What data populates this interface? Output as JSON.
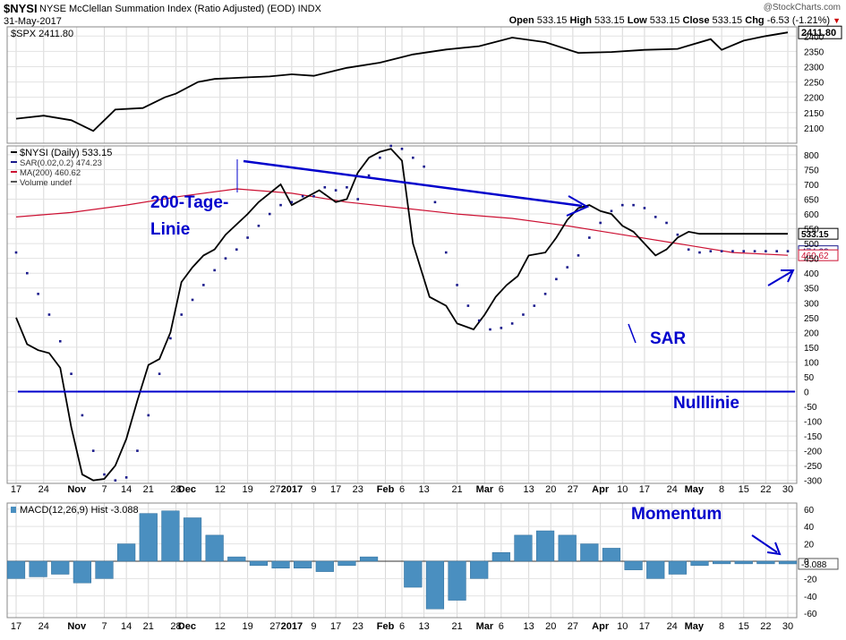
{
  "header": {
    "symbol": "$NYSI",
    "name": "NYSE McClellan Summation Index (Ratio Adjusted) (EOD)",
    "exchange": "INDX",
    "date": "31-May-2017",
    "brand": "@StockCharts.com",
    "open_label": "Open",
    "open": "533.15",
    "high_label": "High",
    "high": "533.15",
    "low_label": "Low",
    "low": "533.15",
    "close_label": "Close",
    "close": "533.15",
    "chg_label": "Chg",
    "chg": "-6.53 (-1.21%)"
  },
  "colors": {
    "price": "#000000",
    "sar": "#1a1a8c",
    "ma": "#cc1133",
    "annot": "#0000cc",
    "macd": "#4a8fc0"
  },
  "chart_data": [
    {
      "type": "line",
      "panel": "SPX",
      "legend": "$SPX 2411.80",
      "last_value_label": "2411.80",
      "ylim": [
        2050,
        2430
      ],
      "y_ticks": [
        2100,
        2150,
        2200,
        2250,
        2300,
        2350,
        2400
      ],
      "x": [
        0,
        5,
        10,
        14,
        18,
        23,
        27,
        29,
        33,
        36,
        42,
        46,
        50,
        54,
        60,
        66,
        72,
        78,
        84,
        90,
        96,
        102,
        108,
        114,
        120,
        126,
        128,
        132,
        136,
        140
      ],
      "values": [
        2130,
        2140,
        2125,
        2090,
        2160,
        2165,
        2200,
        2212,
        2250,
        2260,
        2265,
        2268,
        2275,
        2270,
        2296,
        2313,
        2340,
        2356,
        2367,
        2395,
        2380,
        2345,
        2348,
        2355,
        2358,
        2390,
        2355,
        2385,
        2400,
        2411.8
      ]
    },
    {
      "type": "line",
      "panel": "NYSI",
      "legend": [
        "$NYSI (Daily) 533.15",
        "SAR(0.02,0.2) 474.23",
        "MA(200) 460.62",
        "Volume undef"
      ],
      "ylim": [
        -310,
        830
      ],
      "y_ticks": [
        -300,
        -250,
        -200,
        -150,
        -100,
        -50,
        0,
        50,
        100,
        150,
        200,
        250,
        300,
        350,
        400,
        450,
        500,
        550,
        600,
        650,
        700,
        750,
        800
      ],
      "last_value_labels": [
        "533.15",
        "474.23",
        "460.62"
      ],
      "series": [
        {
          "name": "$NYSI (Daily)",
          "x": [
            0,
            2,
            4,
            6,
            8,
            10,
            12,
            14,
            16,
            18,
            20,
            22,
            24,
            26,
            28,
            30,
            32,
            34,
            36,
            38,
            42,
            44,
            46,
            48,
            50,
            52,
            55,
            58,
            60,
            62,
            64,
            66,
            68,
            70,
            72,
            75,
            78,
            80,
            83,
            85,
            87,
            89,
            91,
            93,
            96,
            98,
            100,
            102,
            104,
            106,
            108,
            110,
            112,
            114,
            116,
            118,
            120,
            122,
            124,
            126,
            128,
            130,
            132,
            134,
            136,
            138,
            140
          ],
          "values": [
            250,
            160,
            140,
            130,
            80,
            -120,
            -280,
            -300,
            -295,
            -250,
            -160,
            -30,
            90,
            110,
            200,
            370,
            420,
            460,
            480,
            530,
            600,
            640,
            670,
            700,
            630,
            650,
            680,
            640,
            650,
            740,
            790,
            810,
            820,
            780,
            500,
            320,
            290,
            230,
            210,
            260,
            320,
            360,
            390,
            460,
            470,
            520,
            580,
            620,
            630,
            610,
            600,
            560,
            540,
            500,
            460,
            480,
            520,
            540,
            533.15,
            533.15,
            533.15,
            533.15,
            533.15,
            533.15,
            533.15,
            533.15,
            533.15
          ]
        },
        {
          "name": "SAR(0.02,0.2)",
          "x": [
            0,
            2,
            4,
            6,
            8,
            10,
            12,
            14,
            16,
            18,
            20,
            22,
            24,
            26,
            28,
            30,
            32,
            34,
            36,
            38,
            40,
            42,
            44,
            46,
            48,
            50,
            52,
            54,
            56,
            58,
            60,
            62,
            64,
            66,
            68,
            70,
            72,
            74,
            76,
            78,
            80,
            82,
            84,
            86,
            88,
            90,
            92,
            94,
            96,
            98,
            100,
            102,
            104,
            106,
            108,
            110,
            112,
            114,
            116,
            118,
            120,
            122,
            124,
            126,
            128,
            130,
            132,
            134,
            136,
            138,
            140
          ],
          "values": [
            470,
            400,
            330,
            260,
            170,
            60,
            -80,
            -200,
            -280,
            -300,
            -290,
            -200,
            -80,
            60,
            180,
            260,
            310,
            360,
            410,
            450,
            480,
            520,
            560,
            600,
            630,
            640,
            660,
            660,
            690,
            680,
            690,
            650,
            730,
            790,
            830,
            820,
            790,
            760,
            640,
            470,
            360,
            290,
            240,
            210,
            215,
            230,
            260,
            290,
            330,
            380,
            420,
            460,
            520,
            570,
            610,
            630,
            630,
            620,
            590,
            570,
            530,
            480,
            470,
            474.23,
            474.23,
            474.23,
            474.23,
            474.23,
            474.23,
            474.23,
            474.23
          ]
        },
        {
          "name": "MA(200)",
          "x": [
            0,
            10,
            20,
            30,
            40,
            50,
            60,
            70,
            80,
            90,
            100,
            110,
            120,
            130,
            140
          ],
          "values": [
            590,
            605,
            630,
            660,
            685,
            670,
            640,
            620,
            600,
            585,
            560,
            530,
            500,
            470,
            460.62
          ]
        }
      ],
      "zero_line": 0
    },
    {
      "type": "bar",
      "panel": "MACD",
      "legend": "MACD(12,26,9) Hist -3.088",
      "last_value_label": "-3.088",
      "ylim": [
        -65,
        67
      ],
      "y_ticks": [
        -60,
        -40,
        -20,
        0,
        20,
        40,
        60
      ],
      "x": [
        0,
        4,
        8,
        12,
        16,
        20,
        24,
        28,
        32,
        36,
        40,
        44,
        48,
        52,
        56,
        60,
        64,
        68,
        72,
        76,
        80,
        84,
        88,
        92,
        96,
        100,
        104,
        108,
        112,
        116,
        120,
        124,
        128,
        132,
        136,
        140
      ],
      "values": [
        -20,
        -18,
        -15,
        -25,
        -20,
        20,
        55,
        58,
        50,
        30,
        5,
        -5,
        -8,
        -8,
        -12,
        -5,
        5,
        0,
        -30,
        -55,
        -45,
        -20,
        10,
        30,
        35,
        30,
        20,
        15,
        -10,
        -20,
        -15,
        -5,
        -3,
        -3,
        -3,
        -3.088
      ]
    }
  ],
  "x_axis": {
    "labels": [
      "17",
      "24",
      "Nov",
      "7",
      "14",
      "21",
      "28",
      "Dec",
      "12",
      "19",
      "27",
      "2017",
      "9",
      "17",
      "23",
      "Feb",
      "6",
      "13",
      "21",
      "Mar",
      "6",
      "13",
      "20",
      "27",
      "Apr",
      "10",
      "17",
      "24",
      "May",
      "8",
      "15",
      "22",
      "30"
    ],
    "positions": [
      0,
      5,
      11,
      16,
      20,
      24,
      29,
      31,
      37,
      42,
      47,
      50,
      54,
      58,
      62,
      67,
      70,
      74,
      80,
      85,
      88,
      93,
      97,
      101,
      106,
      110,
      114,
      119,
      123,
      128,
      132,
      136,
      140
    ],
    "bold": [
      "Nov",
      "Dec",
      "2017",
      "Feb",
      "Mar",
      "Apr",
      "May"
    ]
  },
  "annotations": {
    "ma_label_line1": "200-Tage-",
    "ma_label_line2": "Linie",
    "sar_label": "SAR",
    "zero_label": "Nulllinie",
    "momentum_label": "Momentum"
  }
}
